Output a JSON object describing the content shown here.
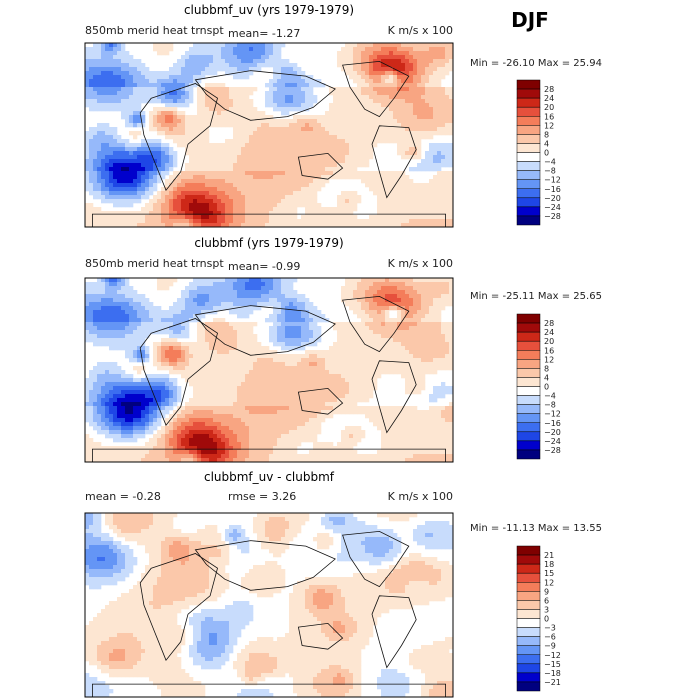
{
  "season": "DJF",
  "chart_data": [
    {
      "type": "heatmap",
      "title": "clubbmf_uv (yrs 1979-1979)",
      "subtitle_left": "850mb merid heat trnspt",
      "mean_text": "mean=   -1.27",
      "units": "K m/s x 100",
      "min": -26.1,
      "max": 25.94,
      "min_max_text": "Min = -26.10 Max =  25.94",
      "levels": [
        -28,
        -24,
        -20,
        -16,
        -12,
        -8,
        -4,
        0,
        4,
        8,
        12,
        16,
        20,
        24,
        28
      ],
      "level_labels": [
        "28",
        "24",
        "20",
        "16",
        "12",
        "8",
        "4",
        "0",
        "−4",
        "−8",
        "−12",
        "−16",
        "−20",
        "−24",
        "−28"
      ],
      "colors": [
        "#00007f",
        "#0000cc",
        "#1e46e6",
        "#3c6ef0",
        "#6495f5",
        "#96b9fa",
        "#c8dcfc",
        "#ffffff",
        "#fde6d2",
        "#fbc8aa",
        "#f8a582",
        "#f47d5a",
        "#e6503c",
        "#cd2818",
        "#a00a0a",
        "#7f0000"
      ]
    },
    {
      "type": "heatmap",
      "title": "clubbmf (yrs 1979-1979)",
      "subtitle_left": "850mb merid heat trnspt",
      "mean_text": "mean=   -0.99",
      "units": "K m/s x 100",
      "min": -25.11,
      "max": 25.65,
      "min_max_text": "Min = -25.11 Max =  25.65",
      "levels": [
        -28,
        -24,
        -20,
        -16,
        -12,
        -8,
        -4,
        0,
        4,
        8,
        12,
        16,
        20,
        24,
        28
      ],
      "level_labels": [
        "28",
        "24",
        "20",
        "16",
        "12",
        "8",
        "4",
        "0",
        "−4",
        "−8",
        "−12",
        "−16",
        "−20",
        "−24",
        "−28"
      ],
      "colors": [
        "#00007f",
        "#0000cc",
        "#1e46e6",
        "#3c6ef0",
        "#6495f5",
        "#96b9fa",
        "#c8dcfc",
        "#ffffff",
        "#fde6d2",
        "#fbc8aa",
        "#f8a582",
        "#f47d5a",
        "#e6503c",
        "#cd2818",
        "#a00a0a",
        "#7f0000"
      ]
    },
    {
      "type": "heatmap",
      "title": "clubbmf_uv - clubbmf",
      "mean_text": "mean =   -0.28",
      "rmse_text": "rmse =    3.26",
      "units": "K m/s x 100",
      "min": -11.13,
      "max": 13.55,
      "min_max_text": "Min = -11.13 Max =  13.55",
      "levels": [
        -21,
        -18,
        -15,
        -12,
        -9,
        -6,
        -3,
        0,
        3,
        6,
        9,
        12,
        15,
        18,
        21
      ],
      "level_labels": [
        "21",
        "18",
        "15",
        "12",
        "9",
        "6",
        "3",
        "0",
        "−3",
        "−6",
        "−9",
        "−12",
        "−15",
        "−18",
        "−21"
      ],
      "colors": [
        "#00007f",
        "#0000cc",
        "#1e46e6",
        "#3c6ef0",
        "#6495f5",
        "#96b9fa",
        "#c8dcfc",
        "#ffffff",
        "#fde6d2",
        "#fbc8aa",
        "#f8a582",
        "#f47d5a",
        "#e6503c",
        "#cd2818",
        "#a00a0a",
        "#7f0000"
      ]
    }
  ]
}
